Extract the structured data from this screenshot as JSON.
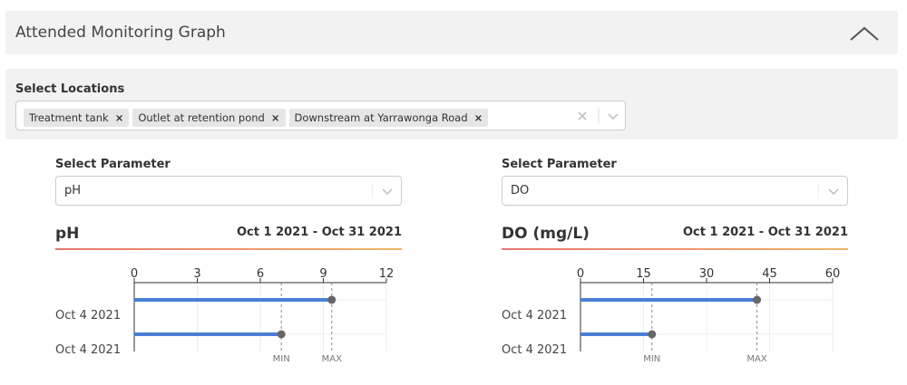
{
  "header": {
    "title": "Attended Monitoring Graph"
  },
  "locations": {
    "label": "Select Locations",
    "tags": [
      "Treatment tank",
      "Outlet at retention pond",
      "Downstream at Yarrawonga Road"
    ]
  },
  "panels": [
    {
      "select_label": "Select Parameter",
      "selected": "pH",
      "chart_data": {
        "type": "bar",
        "orientation": "horizontal",
        "title": "pH",
        "date_range": "Oct 1 2021 - Oct 31 2021",
        "categories": [
          "Oct 4 2021",
          "Oct 4 2021"
        ],
        "values": [
          9.4,
          7.0
        ],
        "color": "#4a7fd4",
        "xlim": [
          0,
          12
        ],
        "xticks": [
          0,
          3,
          6,
          9,
          12
        ],
        "grid": true,
        "reference_lines": [
          {
            "label": "MIN",
            "value": 7.0
          },
          {
            "label": "MAX",
            "value": 9.4
          }
        ]
      }
    },
    {
      "select_label": "Select Parameter",
      "selected": "DO",
      "chart_data": {
        "type": "bar",
        "orientation": "horizontal",
        "title": "DO (mg/L)",
        "date_range": "Oct 1 2021 - Oct 31 2021",
        "categories": [
          "Oct 4 2021",
          "Oct 4 2021"
        ],
        "values": [
          42,
          17
        ],
        "color": "#4a7fd4",
        "xlim": [
          0,
          60
        ],
        "xticks": [
          0,
          15,
          30,
          45,
          60
        ],
        "grid": true,
        "reference_lines": [
          {
            "label": "MIN",
            "value": 17
          },
          {
            "label": "MAX",
            "value": 42
          }
        ]
      }
    }
  ]
}
